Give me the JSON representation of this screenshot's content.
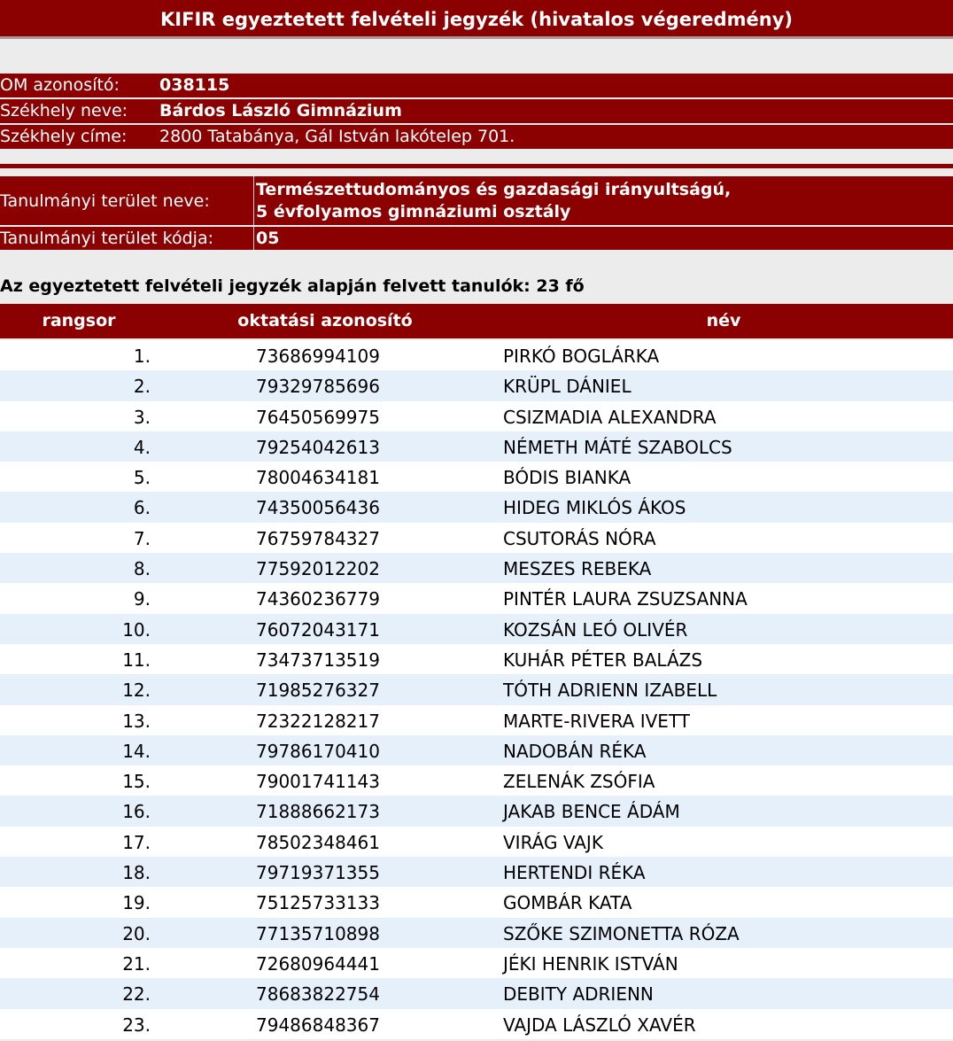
{
  "title": "KIFIR egyeztetett felvételi jegyzék (hivatalos végeredmény)",
  "school": {
    "om_label": "OM azonosító:",
    "om_value": "038115",
    "name_label": "Székhely neve:",
    "name_value": "Bárdos László Gimnázium",
    "address_label": "Székhely címe:",
    "address_value": "2800 Tatabánya, Gál István lakótelep 701."
  },
  "study_area": {
    "name_label": "Tanulmányi terület neve:",
    "name_line1": "Természettudományos és gazdasági irányultságú,",
    "name_line2": "5 évfolyamos gimnáziumi osztály",
    "code_label": "Tanulmányi terület kódja:",
    "code_value": "05"
  },
  "heading": "Az egyeztetett felvételi jegyzék alapján felvett tanulók: 23 fő",
  "table": {
    "columns": [
      "rangsor",
      "oktatási azonosító",
      "név"
    ],
    "rows": [
      [
        "1.",
        "73686994109",
        "PIRKÓ BOGLÁRKA"
      ],
      [
        "2.",
        "79329785696",
        "KRÜPL DÁNIEL"
      ],
      [
        "3.",
        "76450569975",
        "CSIZMADIA ALEXANDRA"
      ],
      [
        "4.",
        "79254042613",
        "NÉMETH MÁTÉ SZABOLCS"
      ],
      [
        "5.",
        "78004634181",
        "BÓDIS BIANKA"
      ],
      [
        "6.",
        "74350056436",
        "HIDEG MIKLÓS ÁKOS"
      ],
      [
        "7.",
        "76759784327",
        "CSUTORÁS NÓRA"
      ],
      [
        "8.",
        "77592012202",
        "MESZES REBEKA"
      ],
      [
        "9.",
        "74360236779",
        "PINTÉR LAURA ZSUZSANNA"
      ],
      [
        "10.",
        "76072043171",
        "KOZSÁN LEÓ OLIVÉR"
      ],
      [
        "11.",
        "73473713519",
        "KUHÁR PÉTER BALÁZS"
      ],
      [
        "12.",
        "71985276327",
        "TÓTH ADRIENN IZABELL"
      ],
      [
        "13.",
        "72322128217",
        "MARTE-RIVERA IVETT"
      ],
      [
        "14.",
        "79786170410",
        "NADOBÁN RÉKA"
      ],
      [
        "15.",
        "79001741143",
        "ZELENÁK ZSÓFIA"
      ],
      [
        "16.",
        "71888662173",
        "JAKAB BENCE ÁDÁM"
      ],
      [
        "17.",
        "78502348461",
        "VIRÁG VAJK"
      ],
      [
        "18.",
        "79719371355",
        "HERTENDI RÉKA"
      ],
      [
        "19.",
        "75125733133",
        "GOMBÁR KATA"
      ],
      [
        "20.",
        "77135710898",
        "SZŐKE SZIMONETTA RÓZA"
      ],
      [
        "21.",
        "72680964441",
        "JÉKI HENRIK ISTVÁN"
      ],
      [
        "22.",
        "78683822754",
        "DEBITY ADRIENN"
      ],
      [
        "23.",
        "79486848367",
        "VAJDA LÁSZLÓ XAVÉR"
      ]
    ]
  },
  "colors": {
    "header_red": "#8b0000",
    "row_alt": "#e6f0fb",
    "background": "#ececec"
  }
}
